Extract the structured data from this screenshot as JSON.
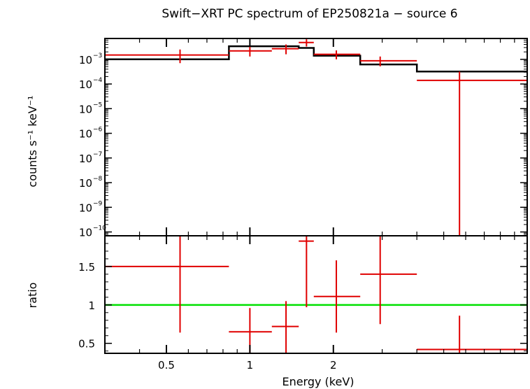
{
  "chart_data": {
    "title": "Swift−XRT PC spectrum of EP250821a − source 6",
    "xlabel": "Energy (keV)",
    "xscale": "log",
    "xlim": [
      0.3,
      10.0
    ],
    "xticks": [
      {
        "value": 0.5,
        "label": "0.5"
      },
      {
        "value": 1,
        "label": "1"
      },
      {
        "value": 2,
        "label": "2"
      }
    ],
    "top_panel": {
      "type": "step-with-errorbars",
      "ylabel": "counts s⁻¹ keV⁻¹",
      "yscale": "log",
      "ylim": [
        7e-11,
        0.007
      ],
      "yticks": [
        {
          "value": 0.001,
          "mantissa": "10",
          "exp": "−3"
        },
        {
          "value": 0.0001,
          "mantissa": "10",
          "exp": "−4"
        },
        {
          "value": 1e-05,
          "mantissa": "10",
          "exp": "−5"
        },
        {
          "value": 1e-06,
          "mantissa": "10",
          "exp": "−6"
        },
        {
          "value": 1e-07,
          "mantissa": "10",
          "exp": "−7"
        },
        {
          "value": 1e-08,
          "mantissa": "10",
          "exp": "−8"
        },
        {
          "value": 1e-09,
          "mantissa": "10",
          "exp": "−9"
        },
        {
          "value": 1e-10,
          "mantissa": "10",
          "exp": "−10"
        }
      ],
      "data": [
        {
          "xlo": 0.3,
          "xhi": 0.84,
          "x": 0.56,
          "y": 0.0015,
          "ylo": 0.0007,
          "yhi": 0.0025
        },
        {
          "xlo": 0.84,
          "xhi": 1.2,
          "x": 1.0,
          "y": 0.0022,
          "ylo": 0.0013,
          "yhi": 0.0033
        },
        {
          "xlo": 1.2,
          "xhi": 1.5,
          "x": 1.35,
          "y": 0.0027,
          "ylo": 0.0016,
          "yhi": 0.004
        },
        {
          "xlo": 1.5,
          "xhi": 1.7,
          "x": 1.6,
          "y": 0.0048,
          "ylo": 0.0033,
          "yhi": 0.0065
        },
        {
          "xlo": 1.7,
          "xhi": 2.5,
          "x": 2.05,
          "y": 0.0016,
          "ylo": 0.001,
          "yhi": 0.0023
        },
        {
          "xlo": 2.5,
          "xhi": 4.0,
          "x": 2.95,
          "y": 0.00087,
          "ylo": 0.00052,
          "yhi": 0.0013
        },
        {
          "xlo": 4.0,
          "xhi": 10.0,
          "x": 5.7,
          "y": 0.00014,
          "ylo": 7e-11,
          "yhi": 0.00032
        }
      ],
      "model": [
        {
          "xlo": 0.3,
          "xhi": 0.84,
          "y": 0.001
        },
        {
          "xlo": 0.84,
          "xhi": 1.5,
          "y": 0.0034
        },
        {
          "xlo": 1.5,
          "xhi": 1.7,
          "y": 0.0029
        },
        {
          "xlo": 1.7,
          "xhi": 2.5,
          "y": 0.0014
        },
        {
          "xlo": 2.5,
          "xhi": 4.0,
          "y": 0.00062
        },
        {
          "xlo": 4.0,
          "xhi": 10.0,
          "y": 0.00032
        }
      ]
    },
    "bottom_panel": {
      "type": "ratio-with-errorbars",
      "ylabel": "ratio",
      "yscale": "linear",
      "ylim": [
        0.37,
        1.9
      ],
      "yticks": [
        {
          "value": 0.5,
          "label": "0.5"
        },
        {
          "value": 1,
          "label": "1"
        },
        {
          "value": 1.5,
          "label": "1.5"
        }
      ],
      "reference_line": 1,
      "data": [
        {
          "xlo": 0.3,
          "xhi": 0.84,
          "x": 0.56,
          "y": 1.5,
          "ylo": 0.64,
          "yhi": 1.9
        },
        {
          "xlo": 0.84,
          "xhi": 1.2,
          "x": 1.0,
          "y": 0.65,
          "ylo": 0.37,
          "yhi": 0.96
        },
        {
          "xlo": 1.2,
          "xhi": 1.5,
          "x": 1.35,
          "y": 0.72,
          "ylo": 0.37,
          "yhi": 1.05
        },
        {
          "xlo": 1.5,
          "xhi": 1.7,
          "x": 1.6,
          "y": 1.83,
          "ylo": 0.97,
          "yhi": 1.9
        },
        {
          "xlo": 1.7,
          "xhi": 2.5,
          "x": 2.05,
          "y": 1.11,
          "ylo": 0.64,
          "yhi": 1.58
        },
        {
          "xlo": 2.5,
          "xhi": 4.0,
          "x": 2.95,
          "y": 1.4,
          "ylo": 0.75,
          "yhi": 1.9
        },
        {
          "xlo": 4.0,
          "xhi": 10.0,
          "x": 5.7,
          "y": 0.42,
          "ylo": 0.37,
          "yhi": 0.86
        }
      ]
    },
    "colors": {
      "data": "#e00000",
      "model": "#000000",
      "reference": "#00e000",
      "axes": "#000000"
    }
  }
}
